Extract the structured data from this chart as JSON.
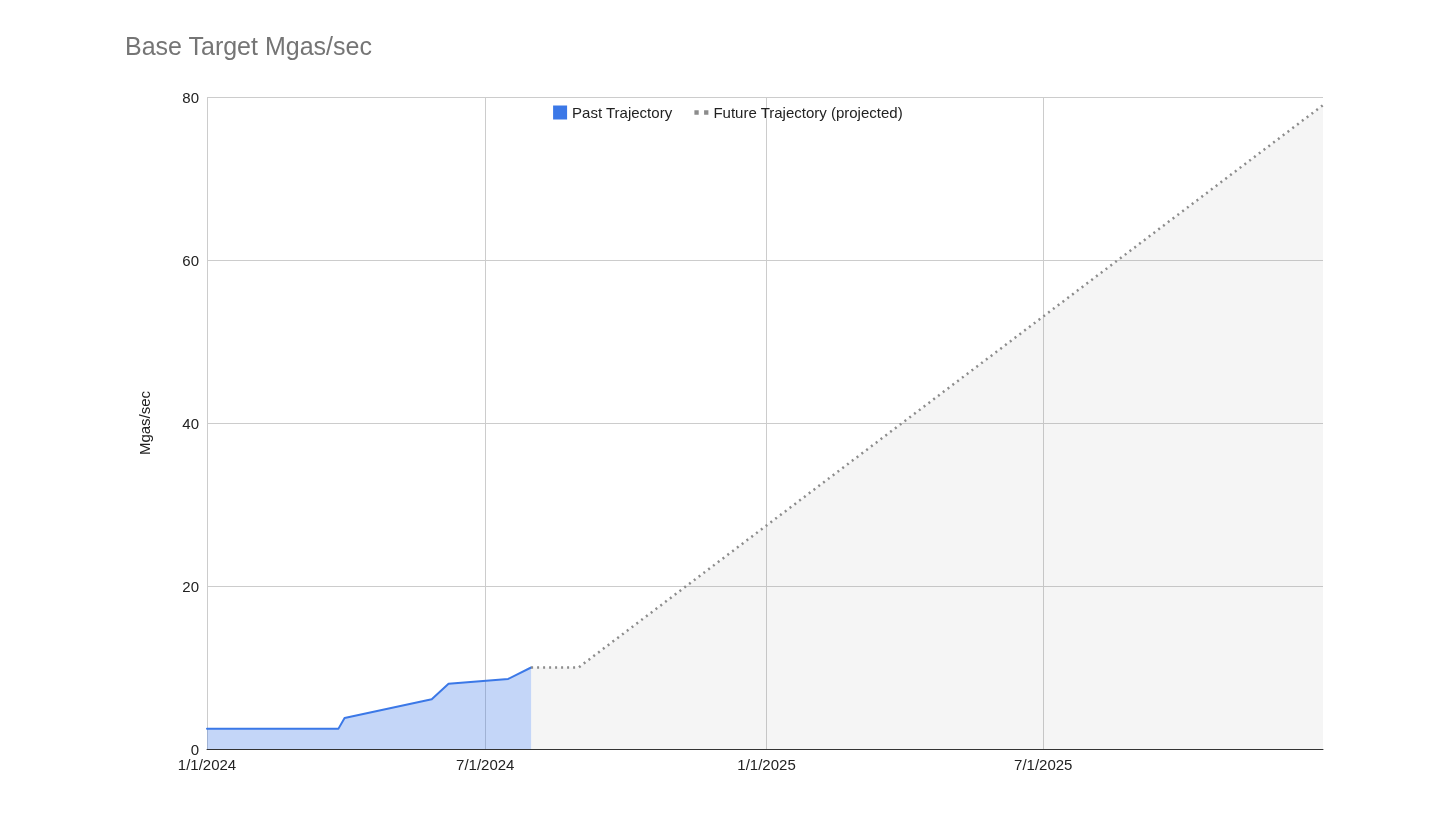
{
  "chart_data": {
    "type": "area",
    "title": "Base Target Mgas/sec",
    "ylabel": "Mgas/sec",
    "xlim": [
      "2024-01-01",
      "2025-12-31"
    ],
    "xticks": [
      {
        "value": "2024-01-01",
        "label": "1/1/2024"
      },
      {
        "value": "2024-07-01",
        "label": "7/1/2024"
      },
      {
        "value": "2025-01-01",
        "label": "1/1/2025"
      },
      {
        "value": "2025-07-01",
        "label": "7/1/2025"
      }
    ],
    "ylim": [
      0,
      80
    ],
    "yticks": [
      0,
      20,
      40,
      60,
      80
    ],
    "series": [
      {
        "name": "Past Trajectory",
        "color": "#3b78e7",
        "line_style": "solid",
        "x": [
          "2024-01-01",
          "2024-03-27",
          "2024-03-31",
          "2024-05-27",
          "2024-06-07",
          "2024-07-16",
          "2024-07-31"
        ],
        "values": [
          2.5,
          2.5,
          3.8,
          6.1,
          8.0,
          8.6,
          10
        ]
      },
      {
        "name": "Future Trajectory (projected)",
        "color": "#8c8c8c",
        "line_style": "dotted",
        "x": [
          "2024-07-31",
          "2024-08-31",
          "2025-12-31"
        ],
        "values": [
          10,
          10,
          79
        ]
      }
    ],
    "grid": true,
    "legend": "top",
    "marker": "none"
  }
}
